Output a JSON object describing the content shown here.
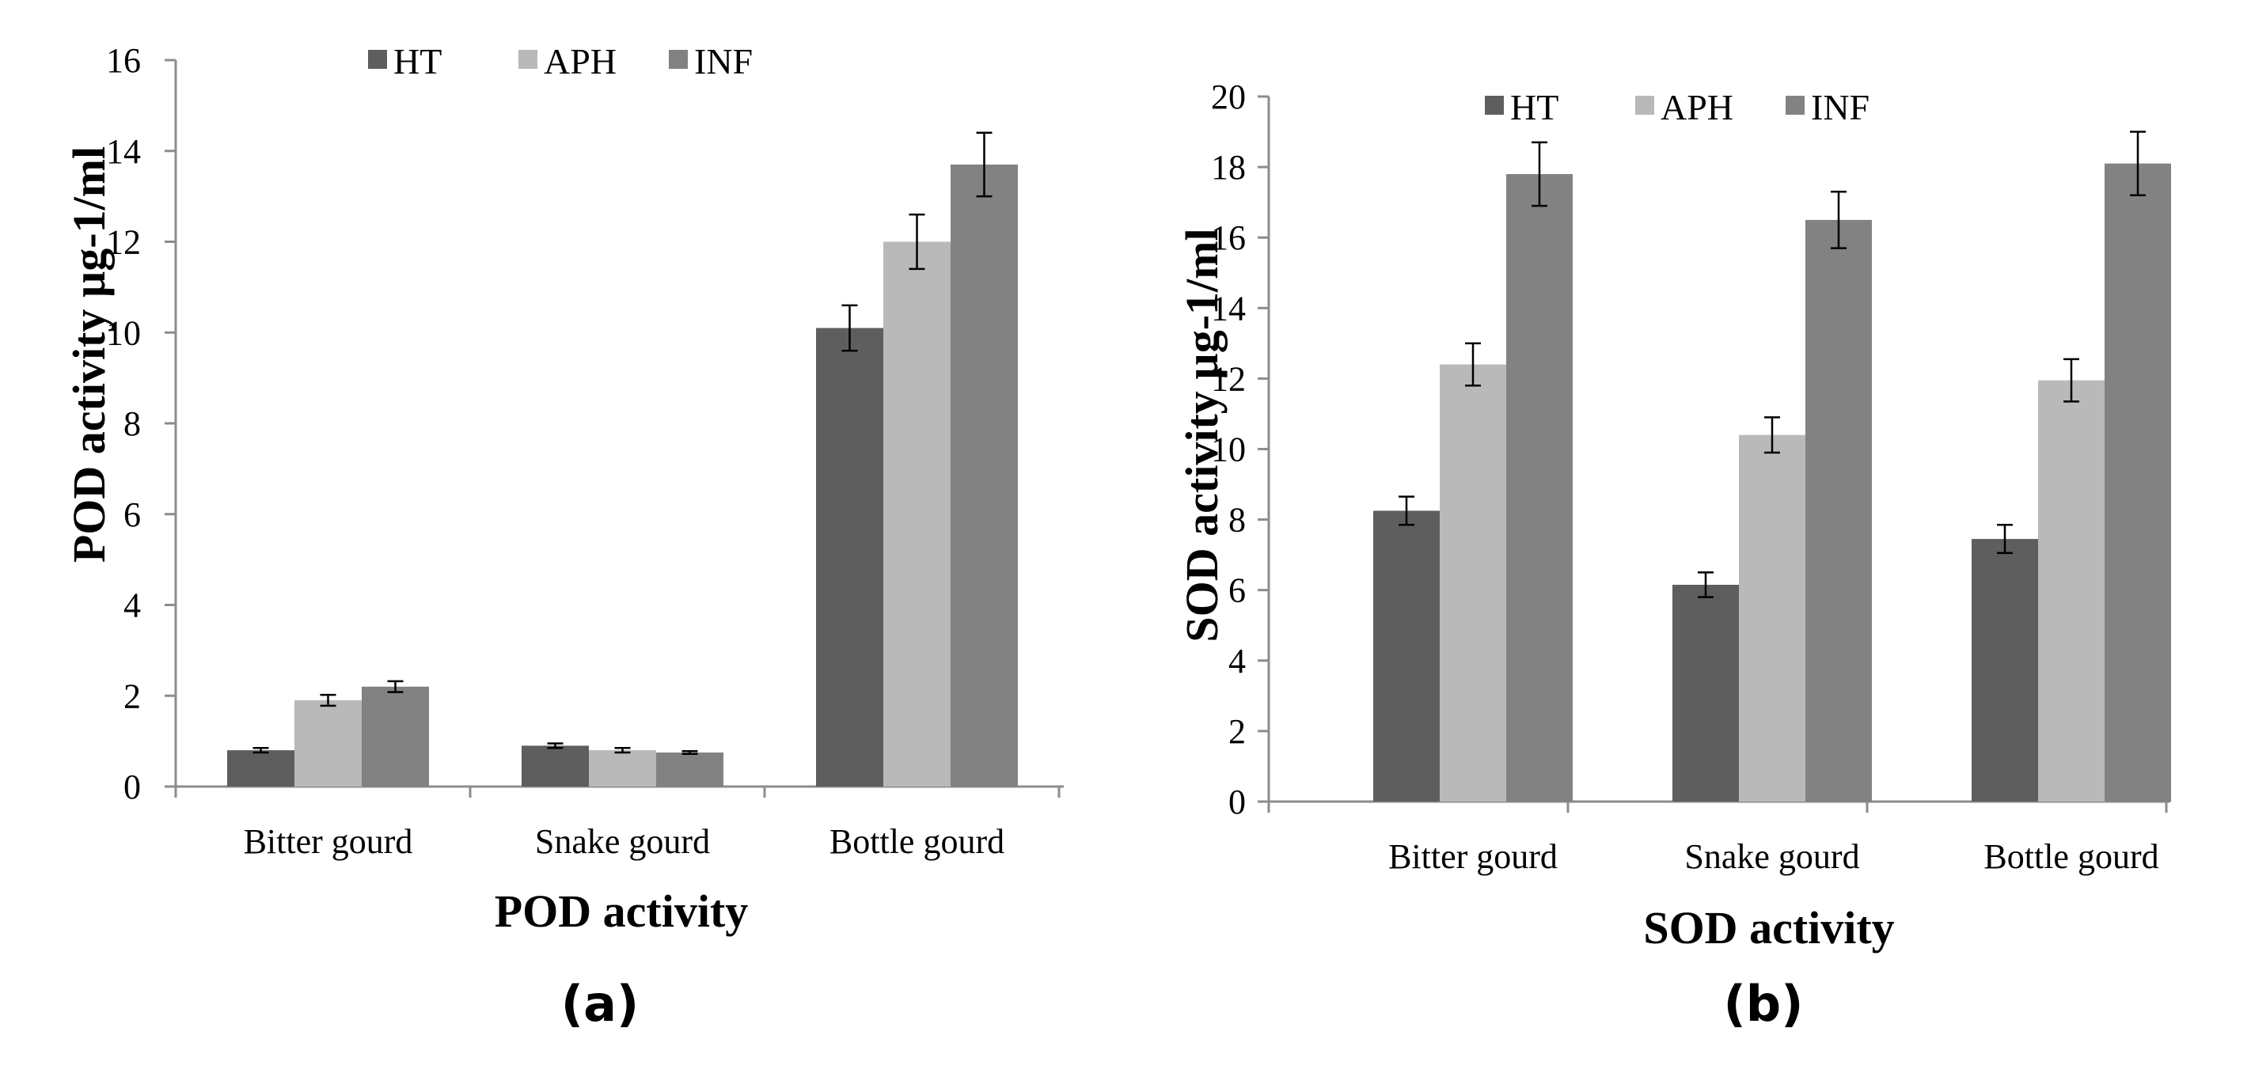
{
  "legend": [
    {
      "name": "HT",
      "color": "#5e5e5e"
    },
    {
      "name": "APH",
      "color": "#b9b9b9"
    },
    {
      "name": "INF",
      "color": "#828282"
    }
  ],
  "chart_data": [
    {
      "type": "bar",
      "panel_label": "(a)",
      "title": "",
      "xlabel": "POD activity",
      "ylabel": "POD activity µg-1/ml",
      "categories": [
        "Bitter gourd",
        "Snake gourd",
        "Bottle gourd"
      ],
      "ylim": [
        0,
        16
      ],
      "yticks": [
        0,
        2,
        4,
        6,
        8,
        10,
        12,
        14,
        16
      ],
      "legend_position": "top",
      "grid": false,
      "series": [
        {
          "name": "HT",
          "values": [
            0.8,
            0.9,
            10.1
          ],
          "errors": [
            0.05,
            0.05,
            0.5
          ]
        },
        {
          "name": "APH",
          "values": [
            1.9,
            0.8,
            12.0
          ],
          "errors": [
            0.12,
            0.05,
            0.6
          ]
        },
        {
          "name": "INF",
          "values": [
            2.2,
            0.75,
            13.7
          ],
          "errors": [
            0.12,
            0.03,
            0.7
          ]
        }
      ]
    },
    {
      "type": "bar",
      "panel_label": "(b)",
      "title": "",
      "xlabel": "SOD activity",
      "ylabel": "SOD activity µg-1/ml",
      "categories": [
        "Bitter gourd",
        "Snake gourd",
        "Bottle gourd"
      ],
      "ylim": [
        0,
        20
      ],
      "yticks": [
        0,
        2,
        4,
        6,
        8,
        10,
        12,
        14,
        16,
        18,
        20
      ],
      "legend_position": "top",
      "grid": false,
      "series": [
        {
          "name": "HT",
          "values": [
            8.25,
            6.15,
            7.45
          ],
          "errors": [
            0.4,
            0.35,
            0.4
          ]
        },
        {
          "name": "APH",
          "values": [
            12.4,
            10.4,
            11.95
          ],
          "errors": [
            0.6,
            0.5,
            0.6
          ]
        },
        {
          "name": "INF",
          "values": [
            17.8,
            16.5,
            18.1
          ],
          "errors": [
            0.9,
            0.8,
            0.9
          ]
        }
      ]
    }
  ]
}
